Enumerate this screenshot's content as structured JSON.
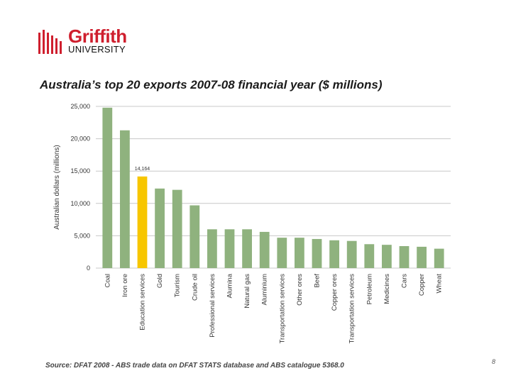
{
  "logo": {
    "line1": "Griffith",
    "line2": "UNIVERSITY"
  },
  "title": "Australia’s top 20 exports 2007-08 financial year ($ millions)",
  "source": "Source: DFAT 2008 - ABS trade data on DFAT STATS database and ABS catalogue 5368.0",
  "page_number": "8",
  "colors": {
    "bar": "#8fb27e",
    "highlight": "#f7c600",
    "grid": "#c8c8c8",
    "brand_red": "#cf1f2e"
  },
  "chart_data": {
    "type": "bar",
    "title": "Australia’s top 20 exports 2007-08 financial year ($ millions)",
    "xlabel": "",
    "ylabel": "Australian dollars (millions)",
    "ylim": [
      0,
      25000
    ],
    "yticks": [
      0,
      5000,
      10000,
      15000,
      20000,
      25000
    ],
    "ytick_labels": [
      "0",
      "5,000",
      "10,000",
      "15,000",
      "20,000",
      "25,000"
    ],
    "grid": true,
    "categories": [
      "Coal",
      "Iron ore",
      "Education services",
      "Gold",
      "Tourism",
      "Crude oil",
      "Professional services",
      "Alumina",
      "Natural gas",
      "Aluminium",
      "Transportation services",
      "Other ores",
      "Beef",
      "Copper ores",
      "Transportation services",
      "Petroleum",
      "Medicines",
      "Cars",
      "Copper",
      "Wheat"
    ],
    "values": [
      24800,
      21300,
      14164,
      12300,
      12100,
      9700,
      6000,
      6000,
      6000,
      5600,
      4700,
      4700,
      4500,
      4300,
      4200,
      3700,
      3600,
      3400,
      3300,
      3000
    ],
    "highlight_index": 2,
    "annotations": [
      {
        "category": "Education services",
        "text": "14,164"
      }
    ]
  }
}
